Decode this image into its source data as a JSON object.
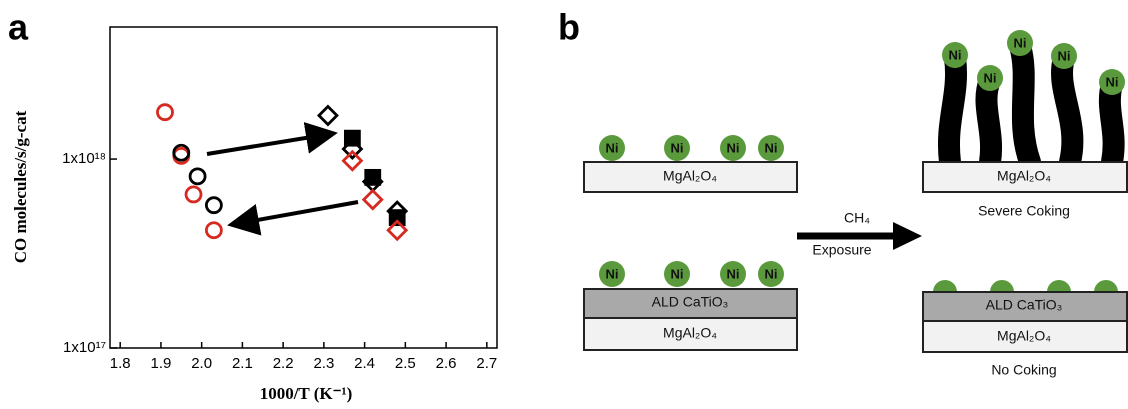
{
  "panels": {
    "a": "a",
    "b": "b"
  },
  "chart_data": {
    "type": "scatter",
    "x_label": "1000/T (K⁻¹)",
    "y_label": "CO molecules/s/g-cat",
    "xlim": [
      1.775,
      2.725
    ],
    "xticks": [
      1.8,
      1.9,
      {
        "value": 2,
        "label": "2.0"
      },
      2.1,
      2.2,
      2.3,
      2.4,
      2.5,
      2.6,
      2.7
    ],
    "ylim": [
      1e+17,
      5e+18
    ],
    "log_y": true,
    "yticks": [
      {
        "value": 1e+17,
        "label": "1x10¹⁷"
      },
      {
        "value": 1e+18,
        "label": "1x10¹⁸"
      }
    ],
    "series": [
      {
        "color": "#d62a20",
        "marker": "circle",
        "filled": false,
        "x": [
          1.91,
          1.95,
          1.98,
          2.03
        ],
        "values": [
          1.77e+18,
          1.04e+18,
          6.5e+17,
          4.2e+17
        ]
      },
      {
        "color": "#000000",
        "marker": "circle",
        "filled": false,
        "x": [
          1.95,
          1.99,
          2.03
        ],
        "values": [
          1.08e+18,
          8.1e+17,
          5.7e+17
        ]
      },
      {
        "color": "#000000",
        "marker": "diamond",
        "filled": false,
        "x": [
          2.31,
          2.37,
          2.42,
          2.48
        ],
        "values": [
          1.7e+18,
          1.13e+18,
          7.6e+17,
          5.3e+17
        ]
      },
      {
        "color": "#000000",
        "marker": "square",
        "filled": true,
        "x": [
          2.37,
          2.42,
          2.48
        ],
        "values": [
          1.29e+18,
          8e+17,
          4.9e+17
        ]
      },
      {
        "color": "#d62a20",
        "marker": "diamond",
        "filled": false,
        "x": [
          2.37,
          2.42,
          2.48
        ],
        "values": [
          9.8e+17,
          6.1e+17,
          4.2e+17
        ]
      }
    ]
  },
  "diagram": {
    "particle": "Ni",
    "support": "MgAl₂O₄",
    "coating": "ALD CaTiO₃",
    "gas": "CH₄",
    "step": "Exposure",
    "result_uncoated": "Severe Coking",
    "result_coated": "No Coking"
  }
}
